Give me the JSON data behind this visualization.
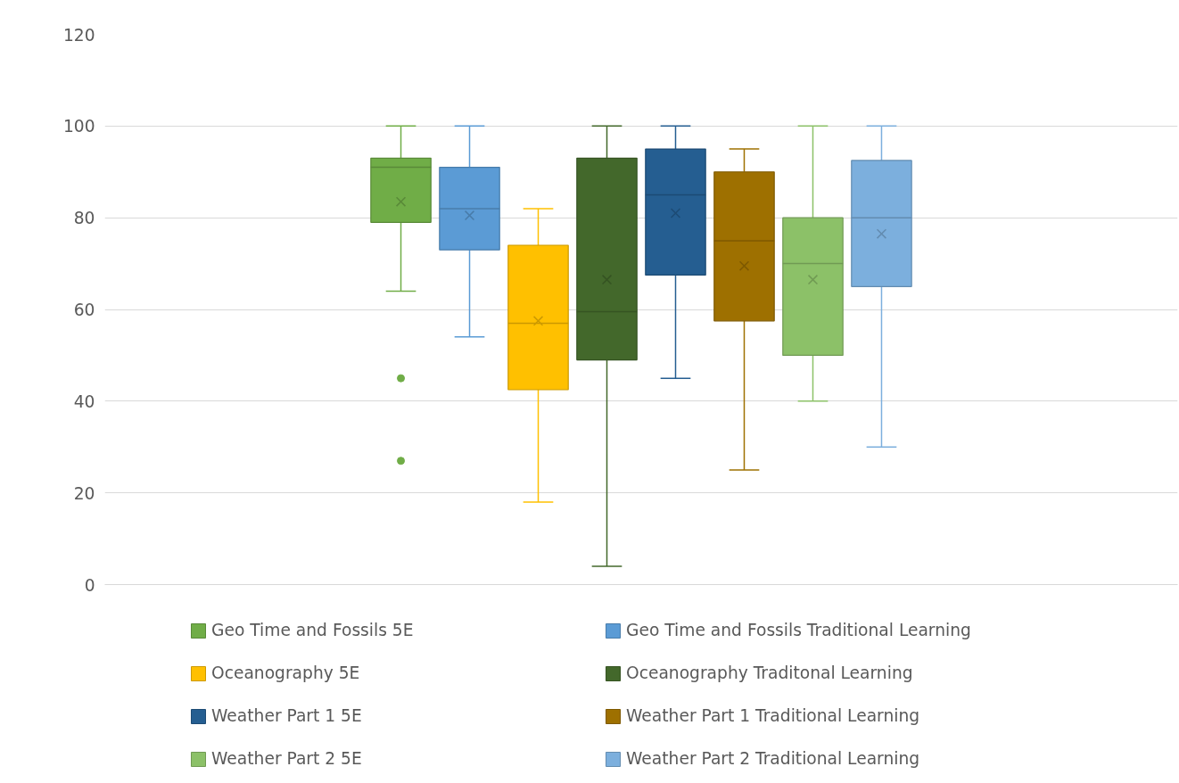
{
  "chart_data": {
    "type": "box",
    "categories": [
      null
    ],
    "ylim": [
      0,
      120
    ],
    "yticks": [
      0,
      20,
      40,
      60,
      80,
      100,
      120
    ],
    "grid": "y",
    "legend": "bottom",
    "tick_labels": "y",
    "series": [
      {
        "name": "Geo Time and Fossils 5E",
        "color": "#70ad47",
        "boxes": [
          {
            "low": 64,
            "q1": 79,
            "median": 91,
            "q3": 93,
            "high": 100,
            "mean": 83.5,
            "outliers": [
              45,
              27
            ]
          }
        ]
      },
      {
        "name": "Geo Time and Fossils Traditional Learning",
        "color": "#5b9bd5",
        "boxes": [
          {
            "low": 54,
            "q1": 73,
            "median": 82,
            "q3": 91,
            "high": 100,
            "mean": 80.5
          }
        ]
      },
      {
        "name": "Oceanography 5E",
        "color": "#ffc000",
        "boxes": [
          {
            "low": 18,
            "q1": 42.5,
            "median": 57,
            "q3": 74,
            "high": 82,
            "mean": 57.5
          }
        ]
      },
      {
        "name": "Oceanography Traditonal Learning",
        "color": "#43682b",
        "boxes": [
          {
            "low": 4,
            "q1": 49,
            "median": 59.5,
            "q3": 93,
            "high": 100,
            "mean": 66.5
          }
        ]
      },
      {
        "name": "Weather Part 1 5E",
        "color": "#255e91",
        "boxes": [
          {
            "low": 45,
            "q1": 67.5,
            "median": 85,
            "q3": 95,
            "high": 100,
            "mean": 81
          }
        ]
      },
      {
        "name": "Weather Part 1 Traditional Learning",
        "color": "#9e7000",
        "boxes": [
          {
            "low": 25,
            "q1": 57.5,
            "median": 75,
            "q3": 90,
            "high": 95,
            "mean": 69.5
          }
        ]
      },
      {
        "name": "Weather Part 2 5E",
        "color": "#8cc168",
        "boxes": [
          {
            "low": 40,
            "q1": 50,
            "median": 70,
            "q3": 80,
            "high": 100,
            "mean": 66.5
          }
        ]
      },
      {
        "name": "Weather Part 2 Traditional Learning",
        "color": "#7cafdd",
        "boxes": [
          {
            "low": 30,
            "q1": 65,
            "median": 80,
            "q3": 92.5,
            "high": 100,
            "mean": 76.5
          }
        ]
      }
    ]
  }
}
